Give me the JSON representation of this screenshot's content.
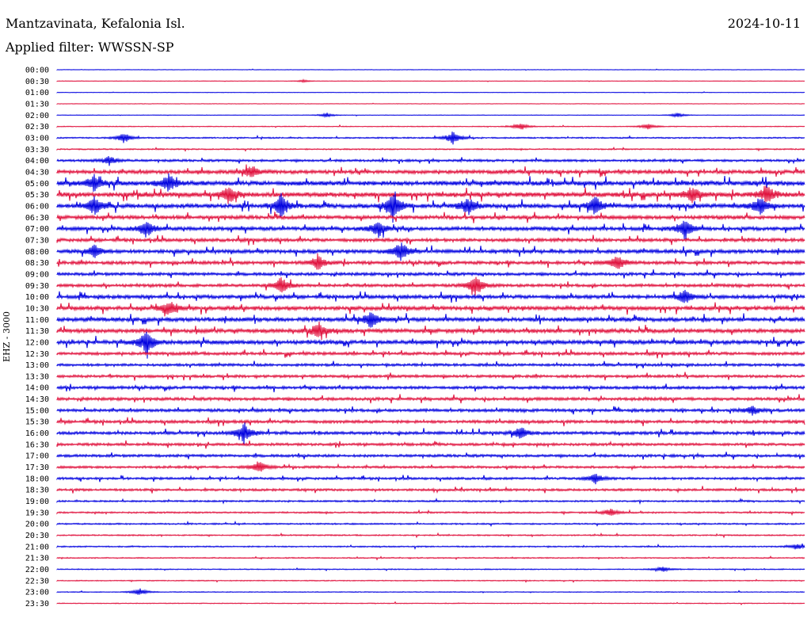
{
  "header": {
    "station": "Mantzavinata, Kefalonia Isl.",
    "date": "2024-10-11",
    "filter": "Applied filter: WWSSN-SP",
    "channel_label": "EHZ - 3000"
  },
  "colors": {
    "odd_row": "#0000e0",
    "even_row": "#e0103c",
    "text": "#000000"
  },
  "chart_data": {
    "type": "line",
    "title": "Mantzavinata, Kefalonia Isl.",
    "subtitle": "Applied filter: WWSSN-SP",
    "ylabel": "EHZ - 3000",
    "rows": [
      "00:00",
      "00:30",
      "01:00",
      "01:30",
      "02:00",
      "02:30",
      "03:00",
      "03:30",
      "04:00",
      "04:30",
      "05:00",
      "05:30",
      "06:00",
      "06:30",
      "07:00",
      "07:30",
      "08:00",
      "08:30",
      "09:00",
      "09:30",
      "10:00",
      "10:30",
      "11:00",
      "11:30",
      "12:00",
      "12:30",
      "13:00",
      "13:30",
      "14:00",
      "14:30",
      "15:00",
      "15:30",
      "16:00",
      "16:30",
      "17:00",
      "17:30",
      "18:00",
      "18:30",
      "19:00",
      "19:30",
      "20:00",
      "20:30",
      "21:00",
      "21:30",
      "22:00",
      "22:30",
      "23:00",
      "23:30"
    ],
    "noise_level": [
      0.3,
      0.3,
      0.3,
      0.3,
      0.3,
      0.5,
      0.8,
      0.8,
      1.4,
      2.2,
      2.8,
      2.8,
      2.6,
      2.2,
      2.2,
      2.0,
      2.2,
      2.0,
      1.8,
      1.8,
      2.2,
      2.4,
      2.4,
      2.4,
      2.4,
      1.8,
      1.6,
      1.6,
      1.8,
      1.8,
      1.8,
      1.8,
      1.8,
      1.6,
      1.6,
      1.4,
      1.4,
      1.4,
      1.0,
      1.0,
      0.9,
      0.8,
      0.8,
      0.7,
      0.6,
      0.6,
      0.5,
      0.5
    ],
    "events": [
      {
        "row": "00:30",
        "t": 0.33,
        "amp": 1.5
      },
      {
        "row": "02:00",
        "t": 0.36,
        "amp": 3
      },
      {
        "row": "02:00",
        "t": 0.83,
        "amp": 3
      },
      {
        "row": "02:30",
        "t": 0.62,
        "amp": 5
      },
      {
        "row": "02:30",
        "t": 0.79,
        "amp": 4
      },
      {
        "row": "03:00",
        "t": 0.09,
        "amp": 7
      },
      {
        "row": "03:00",
        "t": 0.53,
        "amp": 9
      },
      {
        "row": "04:00",
        "t": 0.07,
        "amp": 6
      },
      {
        "row": "04:30",
        "t": 0.26,
        "amp": 8
      },
      {
        "row": "05:00",
        "t": 0.05,
        "amp": 11
      },
      {
        "row": "05:00",
        "t": 0.15,
        "amp": 12
      },
      {
        "row": "05:30",
        "t": 0.23,
        "amp": 12
      },
      {
        "row": "05:30",
        "t": 0.85,
        "amp": 10
      },
      {
        "row": "05:30",
        "t": 0.95,
        "amp": 12
      },
      {
        "row": "06:00",
        "t": 0.05,
        "amp": 12
      },
      {
        "row": "06:00",
        "t": 0.3,
        "amp": 16
      },
      {
        "row": "06:00",
        "t": 0.45,
        "amp": 18
      },
      {
        "row": "06:00",
        "t": 0.55,
        "amp": 12
      },
      {
        "row": "06:00",
        "t": 0.72,
        "amp": 12
      },
      {
        "row": "06:00",
        "t": 0.94,
        "amp": 12
      },
      {
        "row": "07:00",
        "t": 0.12,
        "amp": 12
      },
      {
        "row": "07:00",
        "t": 0.43,
        "amp": 12
      },
      {
        "row": "07:00",
        "t": 0.84,
        "amp": 14
      },
      {
        "row": "08:00",
        "t": 0.05,
        "amp": 8
      },
      {
        "row": "08:00",
        "t": 0.46,
        "amp": 13
      },
      {
        "row": "08:30",
        "t": 0.35,
        "amp": 10
      },
      {
        "row": "08:30",
        "t": 0.75,
        "amp": 10
      },
      {
        "row": "09:30",
        "t": 0.3,
        "amp": 12
      },
      {
        "row": "09:30",
        "t": 0.56,
        "amp": 14
      },
      {
        "row": "10:00",
        "t": 0.84,
        "amp": 10
      },
      {
        "row": "10:30",
        "t": 0.15,
        "amp": 10
      },
      {
        "row": "11:00",
        "t": 0.42,
        "amp": 12
      },
      {
        "row": "11:30",
        "t": 0.35,
        "amp": 12
      },
      {
        "row": "12:00",
        "t": 0.12,
        "amp": 16
      },
      {
        "row": "15:00",
        "t": 0.93,
        "amp": 6
      },
      {
        "row": "16:00",
        "t": 0.25,
        "amp": 14
      },
      {
        "row": "16:00",
        "t": 0.62,
        "amp": 8
      },
      {
        "row": "17:30",
        "t": 0.27,
        "amp": 8
      },
      {
        "row": "18:00",
        "t": 0.72,
        "amp": 7
      },
      {
        "row": "19:30",
        "t": 0.74,
        "amp": 5
      },
      {
        "row": "21:00",
        "t": 0.99,
        "amp": 4
      },
      {
        "row": "22:00",
        "t": 0.81,
        "amp": 4
      },
      {
        "row": "23:00",
        "t": 0.11,
        "amp": 5
      }
    ]
  }
}
